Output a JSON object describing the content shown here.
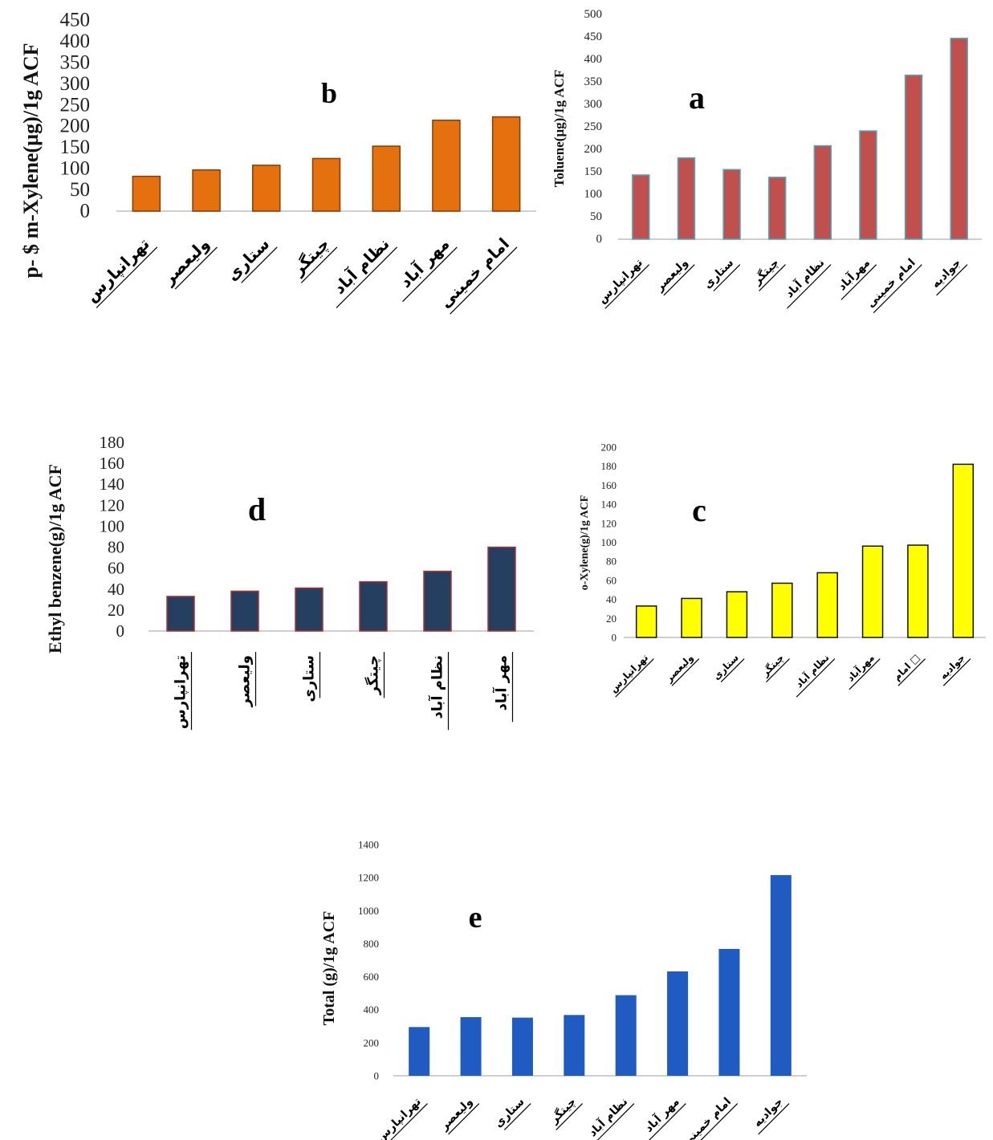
{
  "chart_data": [
    {
      "type": "bar",
      "panel": "b",
      "ylabel": "p- $ m-Xylene(µg)/1g ACF",
      "ylim": [
        0,
        450
      ],
      "yticks": [
        0,
        50,
        100,
        150,
        200,
        250,
        300,
        350,
        400,
        450
      ],
      "categories": [
        "تهرانپارس",
        "ولیعصر",
        "ستاری",
        "چیتگر",
        "نظام آباد",
        "مهر آباد",
        "امام خمینی"
      ],
      "values": [
        82,
        97,
        108,
        124,
        153,
        214,
        222
      ],
      "color": "#E4700E"
    },
    {
      "type": "bar",
      "panel": "a",
      "ylabel": "Toluene(µg)/1g ACF",
      "ylim": [
        0,
        500
      ],
      "yticks": [
        0,
        50,
        100,
        150,
        200,
        250,
        300,
        350,
        400,
        450,
        500
      ],
      "categories": [
        "تهرانپارس",
        "ولیعصر",
        "ستاری",
        "چیتگر",
        "نظام آباد",
        "مهرآباد",
        "امام خمینی",
        "جوادیه"
      ],
      "values": [
        143,
        181,
        155,
        138,
        208,
        241,
        365,
        447
      ],
      "color": "#C0504D"
    },
    {
      "type": "bar",
      "panel": "d",
      "ylabel": "Ethyl benzene(g)/1g ACF",
      "ylim": [
        0,
        180
      ],
      "yticks": [
        0,
        20,
        40,
        60,
        80,
        100,
        120,
        140,
        160,
        180
      ],
      "categories": [
        "تهرانپارس",
        "ولیعصر",
        "ستاری",
        "چیتگر",
        "نظام آباد",
        "مهر آباد"
      ],
      "values": [
        33,
        38,
        41,
        47,
        57,
        80
      ],
      "color": "#243F60"
    },
    {
      "type": "bar",
      "panel": "c",
      "ylabel": "o-Xylene(g)/1g ACF",
      "ylim": [
        0,
        200
      ],
      "yticks": [
        0,
        20,
        40,
        60,
        80,
        100,
        120,
        140,
        160,
        180,
        200
      ],
      "categories": [
        "تهرانپارس",
        "ولیعصر",
        "ستاری",
        "چیتگر",
        "نظام آباد",
        "مهرآباد",
        "امام □",
        "جوادیه"
      ],
      "values": [
        33,
        41,
        48,
        57,
        68,
        96,
        97,
        182
      ],
      "color": "#FFFF00"
    },
    {
      "type": "bar",
      "panel": "e",
      "ylabel": "Total (g)/1g ACF",
      "ylim": [
        0,
        1400
      ],
      "yticks": [
        0,
        200,
        400,
        600,
        800,
        1000,
        1200,
        1400
      ],
      "categories": [
        "تهرانپارس",
        "ولیعصر",
        "ستاری",
        "چیتگر",
        "نظام آباد",
        "مهر آباد",
        "امام خمینی",
        "جوادیه"
      ],
      "values": [
        295,
        355,
        352,
        368,
        488,
        632,
        768,
        1215
      ],
      "color": "#1F5BC1"
    }
  ]
}
